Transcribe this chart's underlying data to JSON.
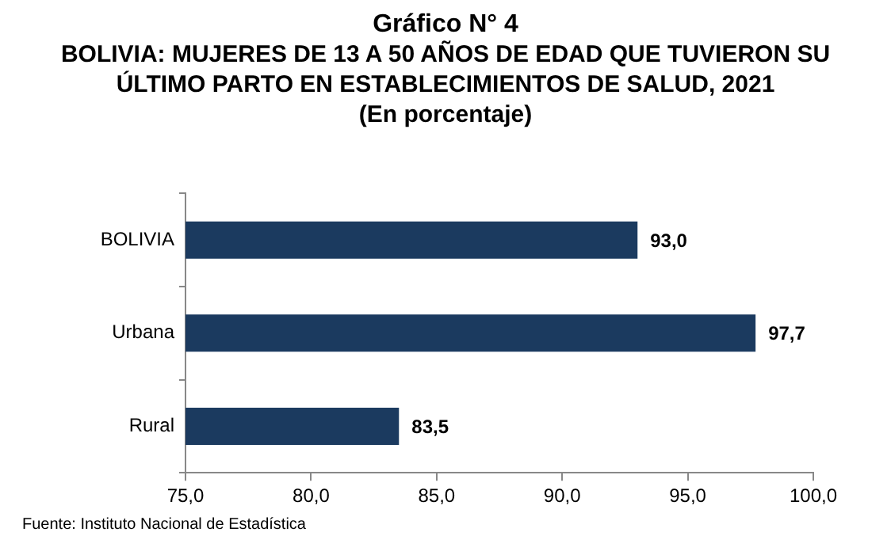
{
  "chart_data": {
    "type": "bar",
    "orientation": "horizontal",
    "title": "Gráfico N° 4",
    "subtitle": "BOLIVIA: MUJERES DE 13 A 50 AÑOS DE EDAD QUE TUVIERON SU ÚLTIMO PARTO EN ESTABLECIMIENTOS DE SALUD, 2021",
    "annotations": [
      "(En porcentaje)",
      "Fuente: Instituto Nacional de Estadística"
    ],
    "categories": [
      "BOLIVIA",
      "Urbana",
      "Rural"
    ],
    "values": [
      93.0,
      97.7,
      83.5
    ],
    "value_labels": [
      "93,0",
      "97,7",
      "83,5"
    ],
    "color": "#1b3a5f",
    "xlim": [
      75,
      100
    ],
    "xticks": [
      {
        "value": 75,
        "label": "75,0"
      },
      {
        "value": 80,
        "label": "80,0"
      },
      {
        "value": 85,
        "label": "85,0"
      },
      {
        "value": 90,
        "label": "90,0"
      },
      {
        "value": 95,
        "label": "95,0"
      },
      {
        "value": 100,
        "label": "100,0"
      }
    ],
    "grid": false,
    "legend": false
  }
}
